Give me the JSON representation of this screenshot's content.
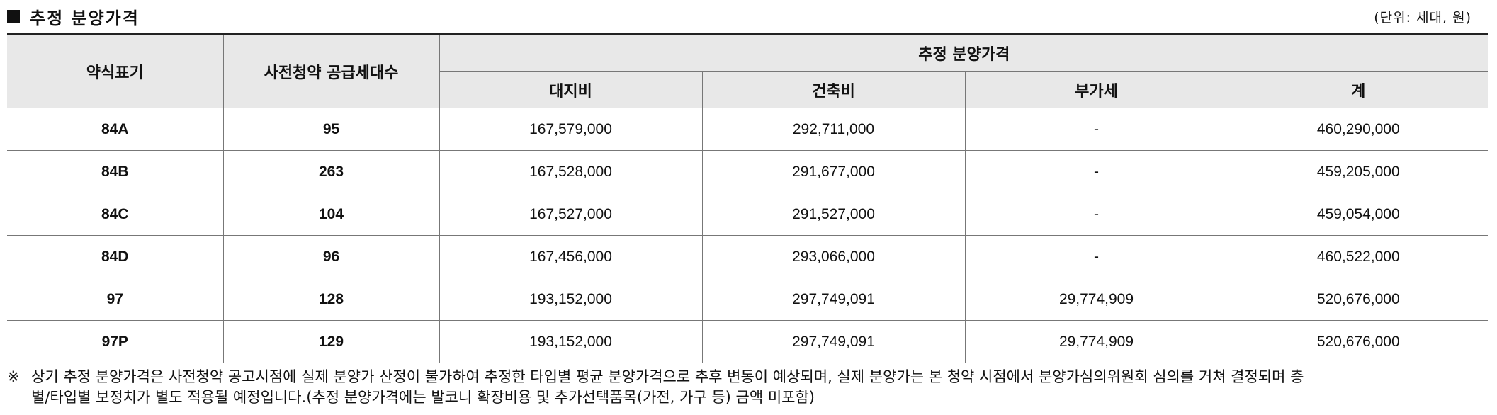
{
  "title": "추정 분양가격",
  "unit_note": "(단위: 세대, 원)",
  "table": {
    "header_type": "약식표기",
    "header_units": "사전청약 공급세대수",
    "header_group": "추정 분양가격",
    "header_land": "대지비",
    "header_build": "건축비",
    "header_vat": "부가세",
    "header_total": "계",
    "rows": [
      {
        "type": "84A",
        "units": "95",
        "land": "167,579,000",
        "build": "292,711,000",
        "vat": "-",
        "total": "460,290,000"
      },
      {
        "type": "84B",
        "units": "263",
        "land": "167,528,000",
        "build": "291,677,000",
        "vat": "-",
        "total": "459,205,000"
      },
      {
        "type": "84C",
        "units": "104",
        "land": "167,527,000",
        "build": "291,527,000",
        "vat": "-",
        "total": "459,054,000"
      },
      {
        "type": "84D",
        "units": "96",
        "land": "167,456,000",
        "build": "293,066,000",
        "vat": "-",
        "total": "460,522,000"
      },
      {
        "type": "97",
        "units": "128",
        "land": "193,152,000",
        "build": "297,749,091",
        "vat": "29,774,909",
        "total": "520,676,000"
      },
      {
        "type": "97P",
        "units": "129",
        "land": "193,152,000",
        "build": "297,749,091",
        "vat": "29,774,909",
        "total": "520,676,000"
      }
    ]
  },
  "footnote": {
    "mark": "※",
    "line1": "상기 추정 분양가격은 사전청약 공고시점에 실제 분양가 산정이 불가하여 추정한 타입별 평균 분양가격으로 추후 변동이 예상되며, 실제 분양가는 본 청약 시점에서 분양가심의위원회 심의를 거쳐 결정되며 층",
    "line2": "별/타입별 보정치가 별도 적용될 예정입니다.(추정 분양가격에는 발코니 확장비용 및 추가선택품목(가전, 가구 등) 금액 미포함)"
  }
}
